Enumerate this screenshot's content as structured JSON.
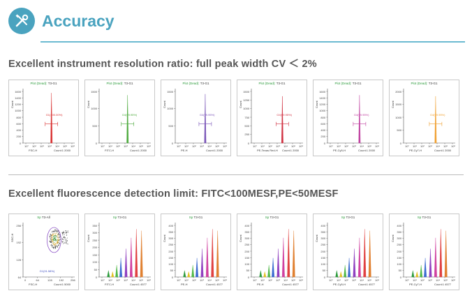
{
  "header": {
    "title": "Accuracy",
    "icon": "wrench-screwdriver-icon",
    "accent": "#4aa3bf"
  },
  "sections": [
    {
      "title": "Excellent instrument resolution ratio: full peak width CV ＜ 2%",
      "panels": [
        {
          "title_prefix": "Plot (Dead):",
          "title_gate": "T3-G1",
          "ylabel": "Count",
          "xparam": "FSC-H",
          "count": "Count:1 2000",
          "yticks": [
            "1600",
            "1400",
            "1200",
            "1000",
            "800",
            "600",
            "400",
            "200",
            "0"
          ],
          "gate": "G1(100.00%)",
          "color": "#d93030",
          "peak": 0.55,
          "height": 0.92
        },
        {
          "title_prefix": "Plot (Dead):",
          "title_gate": "T3-G1",
          "ylabel": "Count",
          "xparam": "FITC-H",
          "count": "Count:1 2000",
          "yticks": [
            "1500",
            "1000",
            "500",
            "0"
          ],
          "gate": "G4(99.95%)",
          "color": "#4caa3c",
          "peak": 0.55,
          "height": 0.88
        },
        {
          "title_prefix": "Plot (Dead):",
          "title_gate": "T3-G1",
          "ylabel": "Count",
          "xparam": "PE-H",
          "count": "Count:1 2000",
          "yticks": [
            "1500",
            "1000",
            "500",
            "0"
          ],
          "gate": "G4(99.95%)",
          "color": "#7a55b8",
          "peak": 0.58,
          "height": 0.9
        },
        {
          "title_prefix": "Plot (Dead):",
          "title_gate": "T3-G1",
          "ylabel": "Count",
          "xparam": "PE-Texas Red-H",
          "count": "Count:1 2000",
          "yticks": [
            "1500",
            "1250",
            "1000",
            "750",
            "500",
            "250",
            "0"
          ],
          "gate": "G4(99.95%)",
          "color": "#d03040",
          "peak": 0.6,
          "height": 0.86
        },
        {
          "title_prefix": "Plot (Dead):",
          "title_gate": "T3-G1",
          "ylabel": "Count",
          "xparam": "PE-Cy5-H",
          "count": "Count:1 2000",
          "yticks": [
            "1600",
            "1400",
            "1200",
            "1000",
            "800",
            "600",
            "400",
            "200",
            "0"
          ],
          "gate": "G4(99.95%)",
          "color": "#c040a0",
          "peak": 0.62,
          "height": 0.88
        },
        {
          "title_prefix": "Plot (Dead):",
          "title_gate": "T3-G1",
          "ylabel": "Count",
          "xparam": "PE-Cy7-H",
          "count": "Count:1 2000",
          "yticks": [
            "2000",
            "1500",
            "1000",
            "500",
            "0"
          ],
          "gate": "G4(99.95%)",
          "color": "#f0a030",
          "peak": 0.62,
          "height": 0.86
        }
      ]
    },
    {
      "title": "Excellent fluorescence detection limit: FITC<100MESF,PE<50MESF",
      "panels": [
        {
          "title_prefix": "Sp",
          "title_gate": "T3-All",
          "ylabel": "SSC-H",
          "xparam": "FSC-H",
          "count": "Count:1 5000",
          "yticks": [
            "256",
            "192",
            "128",
            "64"
          ],
          "xticks": [
            "0",
            "64",
            "128",
            "192",
            "256"
          ],
          "gate": "G1(91.58%)",
          "type": "scatter"
        },
        {
          "title_prefix": "Sp",
          "title_gate": "T3-G1",
          "ylabel": "Count",
          "xparam": "FITC-H",
          "count": "Count:1 4577",
          "yticks": [
            "350",
            "300",
            "250",
            "200",
            "150",
            "100",
            "50",
            "0"
          ],
          "type": "multi"
        },
        {
          "title_prefix": "Sp",
          "title_gate": "T3-G1",
          "ylabel": "Count",
          "xparam": "PE-H",
          "count": "Count:1 4577",
          "yticks": [
            "400",
            "350",
            "300",
            "250",
            "200",
            "150",
            "100",
            "50",
            "0"
          ],
          "type": "multi"
        },
        {
          "title_prefix": "Sp",
          "title_gate": "T3-G1",
          "ylabel": "Count",
          "xparam": "PE-H",
          "count": "Count:1 4577",
          "yticks": [
            "400",
            "350",
            "300",
            "250",
            "200",
            "150",
            "100",
            "50",
            "0"
          ],
          "type": "multi"
        },
        {
          "title_prefix": "Sp",
          "title_gate": "T3-G1",
          "ylabel": "Count",
          "xparam": "PE-Cy5-H",
          "count": "Count:1 4577",
          "yticks": [
            "400",
            "350",
            "300",
            "250",
            "200",
            "150",
            "100",
            "50",
            "0"
          ],
          "type": "multi"
        },
        {
          "title_prefix": "Sp",
          "title_gate": "T3-G1",
          "ylabel": "Count",
          "xparam": "PE-Cy7-H",
          "count": "Count:1 4577",
          "yticks": [
            "400",
            "350",
            "300",
            "250",
            "200",
            "150",
            "100",
            "50",
            "0"
          ],
          "type": "multi"
        }
      ]
    }
  ],
  "multi_peaks": {
    "colors": [
      "#2a9a3a",
      "#e0c020",
      "#50b848",
      "#3a6ad0",
      "#9040c0",
      "#d040a0",
      "#e04040",
      "#e08030"
    ],
    "positions": [
      0.18,
      0.26,
      0.34,
      0.42,
      0.52,
      0.62,
      0.72,
      0.82
    ],
    "heights": [
      0.12,
      0.1,
      0.22,
      0.35,
      0.52,
      0.72,
      0.88,
      0.85
    ]
  }
}
